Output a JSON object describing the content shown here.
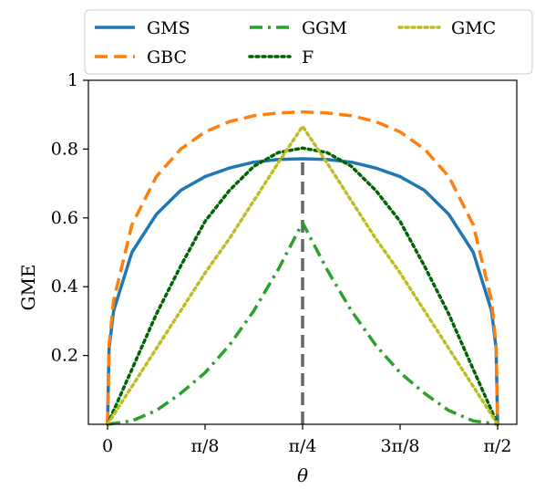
{
  "chart_data": {
    "type": "line",
    "xlabel": "θ",
    "ylabel": "GME",
    "xlim": [
      0,
      1.5708
    ],
    "ylim": [
      0,
      1
    ],
    "x_ticks": [
      {
        "value": 0,
        "label": "0"
      },
      {
        "value": 0.3927,
        "label": "π/8"
      },
      {
        "value": 0.7854,
        "label": "π/4"
      },
      {
        "value": 1.1781,
        "label": "3π/8"
      },
      {
        "value": 1.5708,
        "label": "π/2"
      }
    ],
    "y_ticks": [
      {
        "value": 0.2,
        "label": "0.2"
      },
      {
        "value": 0.4,
        "label": "0.4"
      },
      {
        "value": 0.6,
        "label": "0.6"
      },
      {
        "value": 0.8,
        "label": "0.8"
      },
      {
        "value": 1.0,
        "label": "1"
      }
    ],
    "grid": false,
    "legend_position": "top",
    "series": [
      {
        "name": "GMS",
        "color": "#1f77b4",
        "dash": "solid",
        "x": [
          0,
          0.0061,
          0.0245,
          0.0982,
          0.1963,
          0.2945,
          0.3927,
          0.4909,
          0.589,
          0.6872,
          0.7854,
          0.8836,
          0.9817,
          1.0799,
          1.1781,
          1.2763,
          1.3744,
          1.4726,
          1.5463,
          1.5647,
          1.5708
        ],
        "y": [
          0,
          0.22,
          0.33,
          0.5,
          0.61,
          0.68,
          0.72,
          0.745,
          0.762,
          0.77,
          0.772,
          0.77,
          0.762,
          0.745,
          0.72,
          0.68,
          0.61,
          0.5,
          0.33,
          0.22,
          0
        ]
      },
      {
        "name": "GBC",
        "color": "#ff7f0e",
        "dash": "dashed",
        "x": [
          0,
          0.0061,
          0.0245,
          0.0982,
          0.1963,
          0.2945,
          0.3927,
          0.4909,
          0.589,
          0.6872,
          0.7854,
          0.8836,
          0.9817,
          1.0799,
          1.1781,
          1.2763,
          1.3744,
          1.4726,
          1.5463,
          1.5647,
          1.5708
        ],
        "y": [
          0,
          0.23,
          0.36,
          0.58,
          0.72,
          0.8,
          0.85,
          0.88,
          0.897,
          0.905,
          0.908,
          0.905,
          0.897,
          0.88,
          0.85,
          0.8,
          0.72,
          0.58,
          0.36,
          0.23,
          0
        ]
      },
      {
        "name": "GGM",
        "color": "#2ca02c",
        "dash": "dashdot",
        "x": [
          0,
          0.0982,
          0.1963,
          0.2945,
          0.3927,
          0.4909,
          0.589,
          0.6872,
          0.7854,
          0.8836,
          0.9817,
          1.0799,
          1.1781,
          1.2763,
          1.3744,
          1.4726,
          1.5708
        ],
        "y": [
          0,
          0.01,
          0.04,
          0.09,
          0.15,
          0.23,
          0.33,
          0.45,
          0.586,
          0.45,
          0.33,
          0.23,
          0.15,
          0.09,
          0.04,
          0.01,
          0
        ]
      },
      {
        "name": "F",
        "color": "#006400",
        "dash": "dotted",
        "x": [
          0,
          0.0982,
          0.1963,
          0.2945,
          0.3927,
          0.4909,
          0.589,
          0.6872,
          0.7854,
          0.8836,
          0.9817,
          1.0799,
          1.1781,
          1.2763,
          1.3744,
          1.4726,
          1.5708
        ],
        "y": [
          0,
          0.16,
          0.32,
          0.46,
          0.59,
          0.68,
          0.75,
          0.79,
          0.803,
          0.79,
          0.75,
          0.68,
          0.59,
          0.46,
          0.32,
          0.16,
          0
        ]
      },
      {
        "name": "GMC",
        "color": "#bcbd22",
        "dash": "dotted",
        "x": [
          0,
          0.0982,
          0.1963,
          0.2945,
          0.3927,
          0.4909,
          0.589,
          0.6872,
          0.7854,
          0.8836,
          0.9817,
          1.0799,
          1.1781,
          1.2763,
          1.3744,
          1.4726,
          1.5708
        ],
        "y": [
          0,
          0.11,
          0.22,
          0.33,
          0.44,
          0.54,
          0.65,
          0.76,
          0.866,
          0.76,
          0.65,
          0.54,
          0.44,
          0.33,
          0.22,
          0.11,
          0
        ]
      }
    ],
    "reference_line": {
      "x": 0.7854,
      "y_from": 0,
      "y_to": 0.772,
      "color": "#666666",
      "dash": "dashed"
    }
  }
}
